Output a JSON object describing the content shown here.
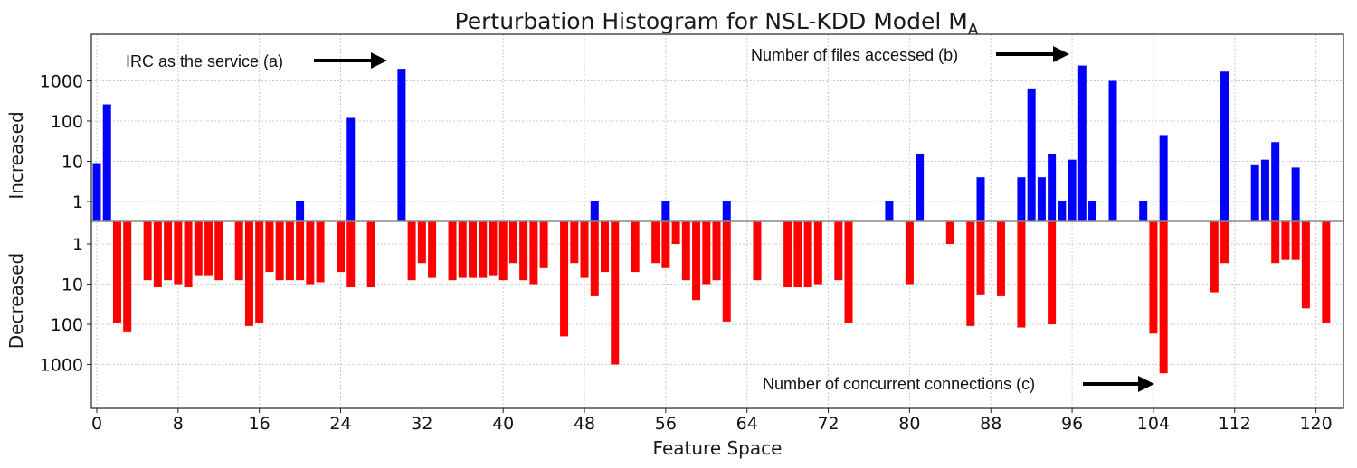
{
  "chart_data": {
    "type": "bar",
    "title": "Perturbation Histogram for NSL-KDD Model M",
    "title_subscript": "A",
    "xlabel": "Feature Space",
    "ylabel_top": "Increased",
    "ylabel_bottom": "Decreased",
    "scale": "log",
    "xlim": [
      0,
      122
    ],
    "x_ticks": [
      0,
      8,
      16,
      24,
      32,
      40,
      48,
      56,
      64,
      72,
      80,
      88,
      96,
      104,
      112,
      120
    ],
    "y_ticks_top": [
      {
        "value": 1,
        "label": "1"
      },
      {
        "value": 10,
        "label": "10"
      },
      {
        "value": 100,
        "label": "100"
      },
      {
        "value": 1000,
        "label": "1000"
      }
    ],
    "y_ticks_bottom": [
      {
        "value": 1,
        "label": "1"
      },
      {
        "value": 10,
        "label": "10"
      },
      {
        "value": 100,
        "label": "100"
      },
      {
        "value": 1000,
        "label": "1000"
      }
    ],
    "series": [
      {
        "name": "Increased",
        "color": "#0000ff",
        "points": [
          [
            0,
            9
          ],
          [
            1,
            260
          ],
          [
            20,
            1
          ],
          [
            25,
            120
          ],
          [
            30,
            2000
          ],
          [
            49,
            1
          ],
          [
            56,
            1
          ],
          [
            62,
            1
          ],
          [
            78,
            1
          ],
          [
            81,
            15
          ],
          [
            87,
            4
          ],
          [
            91,
            4
          ],
          [
            92,
            650
          ],
          [
            93,
            4
          ],
          [
            94,
            15
          ],
          [
            95,
            1
          ],
          [
            96,
            11
          ],
          [
            97,
            2400
          ],
          [
            98,
            1
          ],
          [
            100,
            1000
          ],
          [
            103,
            1
          ],
          [
            105,
            45
          ],
          [
            111,
            1700
          ],
          [
            114,
            8
          ],
          [
            115,
            11
          ],
          [
            116,
            30
          ],
          [
            118,
            7
          ]
        ]
      },
      {
        "name": "Decreased",
        "color": "#ff0000",
        "points": [
          [
            2,
            90
          ],
          [
            3,
            150
          ],
          [
            5,
            8
          ],
          [
            6,
            12
          ],
          [
            7,
            8
          ],
          [
            8,
            10
          ],
          [
            9,
            12
          ],
          [
            10,
            6
          ],
          [
            11,
            6
          ],
          [
            12,
            8
          ],
          [
            14,
            8
          ],
          [
            15,
            110
          ],
          [
            16,
            90
          ],
          [
            17,
            5
          ],
          [
            18,
            8
          ],
          [
            19,
            8
          ],
          [
            20,
            8
          ],
          [
            21,
            10
          ],
          [
            22,
            9
          ],
          [
            24,
            5
          ],
          [
            25,
            12
          ],
          [
            27,
            12
          ],
          [
            31,
            8
          ],
          [
            32,
            3
          ],
          [
            33,
            7
          ],
          [
            35,
            8
          ],
          [
            36,
            7
          ],
          [
            37,
            7
          ],
          [
            38,
            7
          ],
          [
            39,
            6
          ],
          [
            40,
            8
          ],
          [
            41,
            3
          ],
          [
            42,
            8
          ],
          [
            43,
            10
          ],
          [
            44,
            4
          ],
          [
            46,
            200
          ],
          [
            47,
            3
          ],
          [
            48,
            7
          ],
          [
            49,
            20
          ],
          [
            50,
            5
          ],
          [
            51,
            1000
          ],
          [
            53,
            5
          ],
          [
            55,
            3
          ],
          [
            56,
            4
          ],
          [
            57,
            1
          ],
          [
            58,
            8
          ],
          [
            59,
            25
          ],
          [
            60,
            10
          ],
          [
            61,
            8
          ],
          [
            62,
            85
          ],
          [
            65,
            8
          ],
          [
            68,
            12
          ],
          [
            69,
            12
          ],
          [
            70,
            12
          ],
          [
            71,
            10
          ],
          [
            73,
            8
          ],
          [
            74,
            90
          ],
          [
            80,
            10
          ],
          [
            84,
            1
          ],
          [
            86,
            110
          ],
          [
            87,
            18
          ],
          [
            89,
            20
          ],
          [
            91,
            120
          ],
          [
            94,
            100
          ],
          [
            104,
            170
          ],
          [
            105,
            1650
          ],
          [
            110,
            16
          ],
          [
            111,
            3
          ],
          [
            116,
            3
          ],
          [
            117,
            2.5
          ],
          [
            118,
            2.5
          ],
          [
            119,
            40
          ],
          [
            121,
            90
          ]
        ]
      }
    ],
    "annotations": [
      {
        "id": "a",
        "text": "IRC as the service (a)",
        "x": 30
      },
      {
        "id": "b",
        "text": "Number of files accessed (b)",
        "x": 97
      },
      {
        "id": "c",
        "text": "Number of concurrent connections (c)",
        "x": 105
      }
    ]
  }
}
